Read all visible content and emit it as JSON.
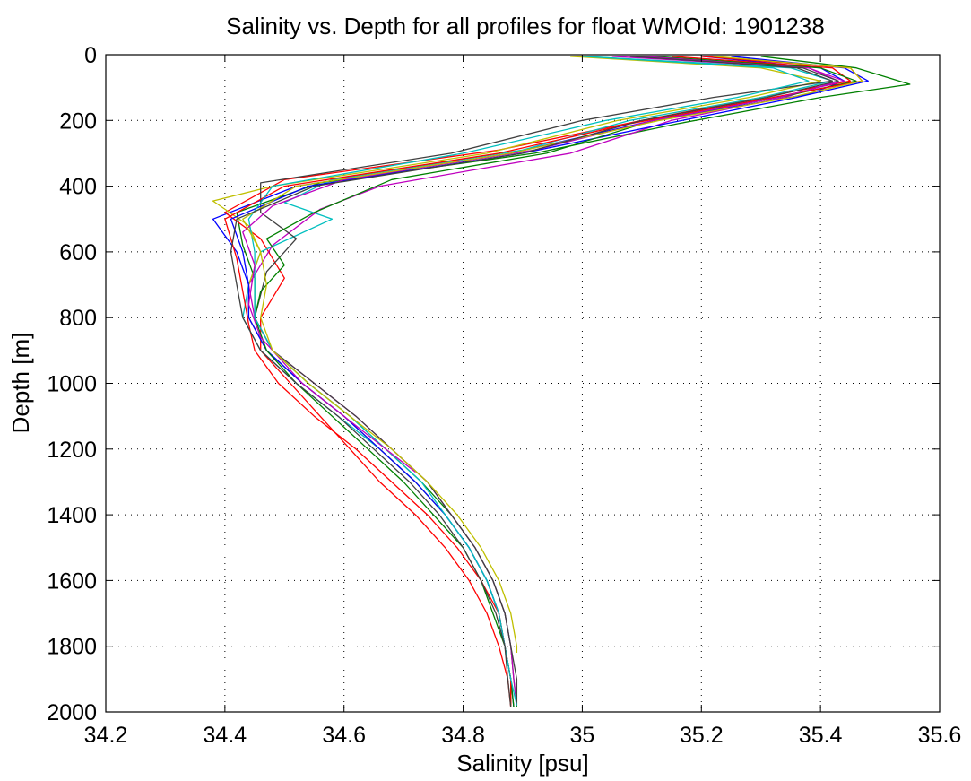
{
  "chart_data": {
    "type": "line",
    "title": "Salinity vs. Depth for all profiles for float WMOId: 1901238",
    "xlabel": "Salinity [psu]",
    "ylabel": "Depth [m]",
    "xlim": [
      34.2,
      35.6
    ],
    "ylim": [
      0,
      2000
    ],
    "y_reversed": true,
    "grid": true,
    "xticks": [
      34.2,
      34.4,
      34.6,
      34.8,
      35,
      35.2,
      35.4,
      35.6
    ],
    "yticks": [
      0,
      200,
      400,
      600,
      800,
      1000,
      1200,
      1400,
      1600,
      1800,
      2000
    ],
    "xtick_labels": [
      "34.2",
      "34.4",
      "34.6",
      "34.8",
      "35",
      "35.2",
      "35.4",
      "35.6"
    ],
    "ytick_labels": [
      "0",
      "200",
      "400",
      "600",
      "800",
      "1000",
      "1200",
      "1400",
      "1600",
      "1800",
      "2000"
    ],
    "series_colors": [
      "#0000ff",
      "#008000",
      "#ff0000",
      "#00bfbf",
      "#bf00bf",
      "#bfbf00",
      "#404040"
    ],
    "series": [
      {
        "depth": [
          5,
          40,
          80,
          120,
          200,
          300,
          400,
          500,
          600,
          700,
          800,
          900,
          1000,
          1100,
          1200,
          1300,
          1400,
          1500,
          1600,
          1700,
          1800,
          1900,
          1980
        ],
        "salinity": [
          35.2,
          35.4,
          35.44,
          35.38,
          35.12,
          34.88,
          34.52,
          34.38,
          34.42,
          34.44,
          34.44,
          34.47,
          34.53,
          34.6,
          34.66,
          34.72,
          34.77,
          34.81,
          34.84,
          34.86,
          34.87,
          34.88,
          34.88
        ]
      },
      {
        "depth": [
          5,
          40,
          90,
          130,
          210,
          300,
          390,
          480,
          580,
          680,
          800,
          900,
          1000,
          1100,
          1200,
          1300,
          1400,
          1500,
          1600,
          1700,
          1800,
          1900,
          1985
        ],
        "salinity": [
          35.3,
          35.46,
          35.55,
          35.4,
          35.16,
          34.92,
          34.56,
          34.42,
          34.43,
          34.45,
          34.45,
          34.48,
          34.54,
          34.61,
          34.67,
          34.73,
          34.78,
          34.82,
          34.85,
          34.87,
          34.88,
          34.885,
          34.89
        ]
      },
      {
        "depth": [
          5,
          40,
          80,
          130,
          200,
          290,
          380,
          480,
          560,
          680,
          800,
          900,
          1000,
          1100,
          1200,
          1300,
          1400,
          1500,
          1600,
          1700,
          1800,
          1900,
          1985
        ],
        "salinity": [
          35.15,
          35.42,
          35.45,
          35.3,
          35.1,
          34.86,
          34.5,
          34.4,
          34.46,
          34.5,
          34.46,
          34.46,
          34.51,
          34.56,
          34.61,
          34.66,
          34.72,
          34.77,
          34.81,
          34.84,
          34.86,
          34.875,
          34.88
        ]
      },
      {
        "depth": [
          5,
          40,
          80,
          130,
          200,
          290,
          380,
          450,
          500,
          600,
          700,
          800,
          900,
          1000,
          1100,
          1200,
          1300,
          1400,
          1500,
          1600,
          1700,
          1800,
          1900,
          1980
        ],
        "salinity": [
          35.0,
          35.35,
          35.42,
          35.3,
          35.08,
          34.9,
          34.58,
          34.5,
          34.58,
          34.46,
          34.44,
          34.43,
          34.46,
          34.52,
          34.59,
          34.66,
          34.72,
          34.77,
          34.81,
          34.84,
          34.86,
          34.87,
          34.88,
          34.88
        ]
      },
      {
        "depth": [
          5,
          40,
          80,
          130,
          200,
          300,
          400,
          470,
          580,
          700,
          800,
          900,
          1000,
          1100,
          1200,
          1300,
          1400,
          1500,
          1600,
          1700,
          1800,
          1900,
          1975
        ],
        "salinity": [
          35.05,
          35.38,
          35.43,
          35.34,
          35.15,
          34.98,
          34.66,
          34.56,
          34.48,
          34.44,
          34.45,
          34.48,
          34.55,
          34.62,
          34.68,
          34.74,
          34.78,
          34.82,
          34.85,
          34.87,
          34.88,
          34.885,
          34.89
        ]
      },
      {
        "depth": [
          5,
          40,
          80,
          130,
          200,
          300,
          400,
          445,
          520,
          600,
          700,
          800,
          900,
          1000,
          1100,
          1200,
          1300,
          1400,
          1500,
          1600,
          1700,
          1800,
          1900,
          1980
        ],
        "salinity": [
          34.98,
          35.3,
          35.4,
          35.28,
          35.06,
          34.84,
          34.48,
          34.38,
          34.44,
          34.46,
          34.44,
          34.44,
          34.47,
          34.53,
          34.6,
          34.66,
          34.72,
          34.77,
          34.81,
          34.84,
          34.86,
          34.87,
          34.88,
          34.88
        ]
      },
      {
        "depth": [
          5,
          40,
          80,
          130,
          200,
          300,
          390,
          480,
          560,
          660,
          800,
          900,
          1000,
          1100,
          1200,
          1300,
          1400,
          1500,
          1600,
          1700,
          1800,
          1900,
          1980
        ],
        "salinity": [
          35.1,
          35.36,
          35.42,
          35.22,
          35.0,
          34.78,
          34.46,
          34.46,
          34.52,
          34.47,
          34.45,
          34.48,
          34.55,
          34.62,
          34.68,
          34.74,
          34.78,
          34.82,
          34.85,
          34.87,
          34.88,
          34.89,
          34.89
        ]
      },
      {
        "depth": [
          5,
          40,
          80,
          130,
          210,
          300,
          400,
          500,
          600,
          700,
          800,
          900,
          1000,
          1100,
          1200,
          1300,
          1400,
          1500,
          1600,
          1700,
          1800,
          1900,
          1985
        ],
        "salinity": [
          35.25,
          35.44,
          35.48,
          35.36,
          35.14,
          34.9,
          34.54,
          34.41,
          34.43,
          34.44,
          34.44,
          34.47,
          34.53,
          34.6,
          34.66,
          34.72,
          34.77,
          34.81,
          34.84,
          34.86,
          34.87,
          34.88,
          34.885
        ]
      },
      {
        "depth": [
          5,
          40,
          80,
          130,
          200,
          300,
          380,
          480,
          560,
          640,
          720,
          800,
          900,
          1000,
          1100,
          1200,
          1300,
          1400,
          1500,
          1600,
          1700,
          1800,
          1900,
          1985
        ],
        "salinity": [
          35.12,
          35.4,
          35.46,
          35.33,
          35.12,
          34.94,
          34.68,
          34.55,
          34.47,
          34.5,
          34.46,
          34.45,
          34.47,
          34.52,
          34.58,
          34.64,
          34.7,
          34.75,
          34.8,
          34.83,
          34.85,
          34.87,
          34.88,
          34.885
        ]
      },
      {
        "depth": [
          5,
          40,
          80,
          130,
          210,
          300,
          400,
          500,
          620,
          720,
          820,
          900,
          1000,
          1100,
          1200,
          1300,
          1400,
          1500,
          1600,
          1700,
          1800,
          1900,
          1980
        ],
        "salinity": [
          35.2,
          35.45,
          35.47,
          35.32,
          35.08,
          34.86,
          34.5,
          34.4,
          34.42,
          34.43,
          34.44,
          34.45,
          34.49,
          34.55,
          34.62,
          34.68,
          34.74,
          34.79,
          34.83,
          34.86,
          34.87,
          34.88,
          34.88
        ]
      },
      {
        "depth": [
          5,
          40,
          80,
          130,
          200,
          300,
          400,
          500,
          600,
          700,
          800,
          900,
          1000,
          1100,
          1200,
          1300,
          1400,
          1500,
          1600,
          1700,
          1800,
          1900,
          1980
        ],
        "salinity": [
          35.0,
          35.32,
          35.38,
          35.26,
          35.04,
          34.8,
          34.48,
          34.44,
          34.45,
          34.45,
          34.45,
          34.48,
          34.54,
          34.61,
          34.67,
          34.73,
          34.77,
          34.81,
          34.84,
          34.86,
          34.87,
          34.88,
          34.89
        ]
      },
      {
        "depth": [
          5,
          40,
          80,
          130,
          200,
          290,
          380,
          460,
          540,
          640,
          760,
          860,
          1000,
          1100,
          1200,
          1270
        ],
        "salinity": [
          35.1,
          35.38,
          35.44,
          35.33,
          35.12,
          34.92,
          34.6,
          34.48,
          34.43,
          34.45,
          34.44,
          34.46,
          34.53,
          34.6,
          34.67,
          34.72
        ]
      },
      {
        "depth": [
          5,
          40,
          80,
          130,
          200,
          300,
          400,
          500,
          600,
          700,
          800,
          900,
          1000,
          1100,
          1200,
          1300,
          1400,
          1500,
          1600,
          1700,
          1800,
          1820
        ],
        "salinity": [
          35.22,
          35.45,
          35.47,
          35.35,
          35.13,
          34.88,
          34.52,
          34.43,
          34.46,
          34.47,
          34.46,
          34.48,
          34.54,
          34.61,
          34.68,
          34.74,
          34.79,
          34.83,
          34.86,
          34.88,
          34.89,
          34.89
        ]
      },
      {
        "depth": [
          5,
          40,
          80,
          130,
          200,
          300,
          400,
          500,
          600,
          700,
          800,
          900,
          1000,
          1100,
          1200,
          1300,
          1400,
          1500,
          1600,
          1700,
          1800,
          1900,
          1985
        ],
        "salinity": [
          35.08,
          35.37,
          35.43,
          35.31,
          35.1,
          34.9,
          34.55,
          34.42,
          34.41,
          34.42,
          34.43,
          34.46,
          34.52,
          34.59,
          34.65,
          34.71,
          34.76,
          34.8,
          34.83,
          34.855,
          34.87,
          34.875,
          34.88
        ]
      }
    ]
  }
}
